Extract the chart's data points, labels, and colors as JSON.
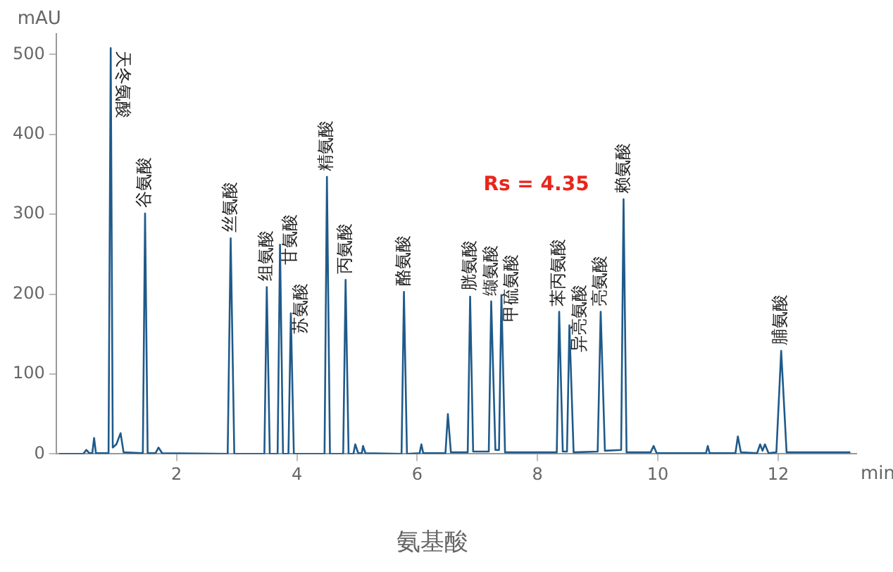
{
  "chart_data": {
    "type": "line",
    "title": "氨基酸",
    "xlabel": "min",
    "ylabel": "mAU",
    "xlim": [
      0,
      13.3
    ],
    "xticks": [
      2,
      4,
      6,
      8,
      10,
      12
    ],
    "ylim": [
      0,
      526
    ],
    "yticks": [
      0,
      100,
      200,
      300,
      400,
      500
    ],
    "grid": false,
    "legend": false,
    "marker": "none",
    "line_style": "solid",
    "series": [
      {
        "color": "#1f5a8a",
        "x": [
          0.05,
          0.45,
          0.5,
          0.55,
          0.6,
          0.63,
          0.66,
          0.87,
          0.906,
          0.94,
          1.0,
          1.07,
          1.12,
          1.44,
          1.477,
          1.52,
          1.65,
          1.7,
          1.76,
          2.85,
          2.9,
          2.96,
          3.46,
          3.5,
          3.55,
          3.68,
          3.72,
          3.77,
          3.86,
          3.9,
          3.95,
          4.46,
          4.5,
          4.55,
          4.77,
          4.81,
          4.86,
          4.94,
          4.97,
          5.02,
          5.08,
          5.1,
          5.14,
          5.74,
          5.78,
          5.83,
          6.04,
          6.07,
          6.1,
          6.47,
          6.51,
          6.56,
          6.84,
          6.88,
          6.93,
          7.19,
          7.23,
          7.3,
          7.36,
          7.4,
          7.46,
          8.32,
          8.36,
          8.42,
          8.49,
          8.53,
          8.6,
          9.0,
          9.05,
          9.12,
          9.39,
          9.43,
          9.48,
          9.88,
          9.93,
          9.98,
          10.8,
          10.83,
          10.86,
          11.29,
          11.33,
          11.38,
          11.65,
          11.7,
          11.74,
          11.78,
          11.84,
          11.97,
          12.05,
          12.14,
          13.2
        ],
        "values": [
          0,
          0,
          5,
          1,
          1,
          20,
          1,
          1,
          508,
          8,
          12,
          26,
          2,
          1,
          301,
          1,
          1,
          8,
          1,
          0,
          270,
          0,
          0,
          209,
          0,
          0,
          262,
          0,
          0,
          176,
          0,
          0,
          347,
          0,
          0,
          218,
          0,
          0,
          12,
          1,
          1,
          10,
          1,
          0,
          203,
          0,
          1,
          12,
          1,
          1,
          50,
          2,
          2,
          197,
          3,
          3,
          191,
          5,
          5,
          199,
          2,
          2,
          178,
          3,
          3,
          161,
          2,
          3,
          178,
          4,
          5,
          319,
          2,
          2,
          10,
          1,
          1,
          10,
          1,
          1,
          22,
          2,
          1,
          12,
          4,
          12,
          1,
          2,
          129,
          2,
          2
        ]
      }
    ],
    "annotations": [
      {
        "text": "天冬氨酸",
        "x": 0.906,
        "y": 508
      },
      {
        "text": "谷氨酸",
        "x": 1.477,
        "y": 301
      },
      {
        "text": "丝氨酸",
        "x": 2.9,
        "y": 270
      },
      {
        "text": "组氨酸",
        "x": 3.5,
        "y": 209
      },
      {
        "text": "甘氨酸",
        "x": 3.72,
        "y": 262
      },
      {
        "text": "苏氨酸",
        "x": 3.9,
        "y": 176
      },
      {
        "text": "精氨酸",
        "x": 4.5,
        "y": 347
      },
      {
        "text": "丙氨酸",
        "x": 4.81,
        "y": 218
      },
      {
        "text": "酪氨酸",
        "x": 5.78,
        "y": 203
      },
      {
        "text": "胱氨酸",
        "x": 6.88,
        "y": 197
      },
      {
        "text": "缬氨酸",
        "x": 7.23,
        "y": 191
      },
      {
        "text": "甲硫氨酸",
        "x": 7.4,
        "y": 199
      },
      {
        "text": "苯丙氨酸",
        "x": 8.36,
        "y": 178
      },
      {
        "text": "异亮氨酸",
        "x": 8.53,
        "y": 161
      },
      {
        "text": "亮氨酸",
        "x": 9.05,
        "y": 178
      },
      {
        "text": "赖氨酸",
        "x": 9.43,
        "y": 319
      },
      {
        "text": "脯氨酸",
        "x": 12.05,
        "y": 129
      },
      "Rs = 4.35"
    ]
  }
}
